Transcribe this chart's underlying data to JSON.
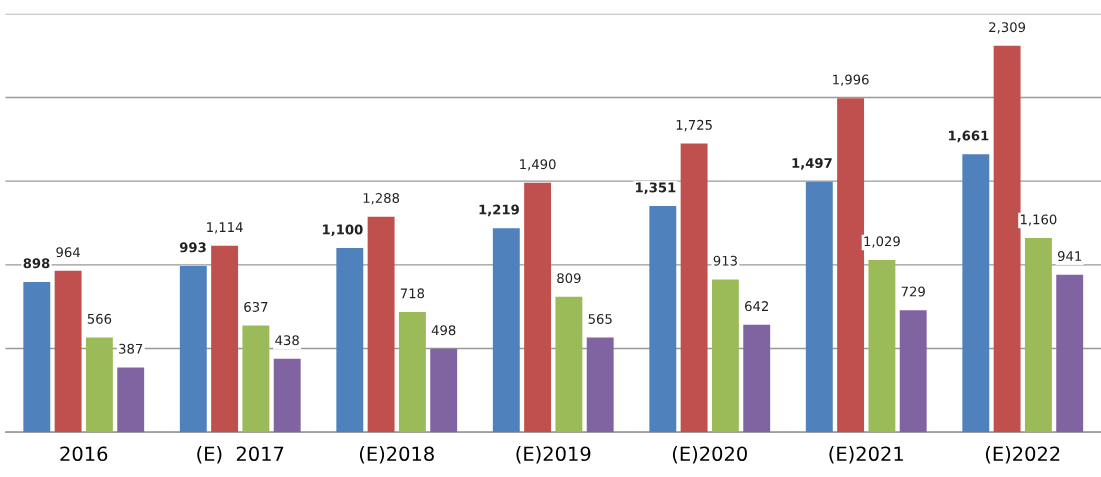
{
  "chart_data": {
    "type": "bar",
    "categories": [
      "2016",
      "(E)  2017",
      "(E)2018",
      "(E)2019",
      "(E)2020",
      "(E)2021",
      "(E)2022"
    ],
    "series": [
      {
        "color": "#4f81bd",
        "values": [
          898,
          993,
          1100,
          1219,
          1351,
          1497,
          1661
        ],
        "value_labels": [
          "898",
          "993",
          "1,100",
          "1,219",
          "1,351",
          "1,497",
          "1,661"
        ]
      },
      {
        "color": "#c0504d",
        "values": [
          964,
          1114,
          1288,
          1490,
          1725,
          1996,
          2309
        ],
        "value_labels": [
          "964",
          "1,114",
          "1,288",
          "1,490",
          "1,725",
          "1,996",
          "2,309"
        ]
      },
      {
        "color": "#9bbb59",
        "values": [
          566,
          637,
          718,
          809,
          913,
          1029,
          1160
        ],
        "value_labels": [
          "566",
          "637",
          "718",
          "809",
          "913",
          "1,029",
          "1,160"
        ]
      },
      {
        "color": "#8064a2",
        "values": [
          387,
          438,
          498,
          565,
          642,
          729,
          941
        ],
        "value_labels": [
          "387",
          "438",
          "498",
          "565",
          "642",
          "729",
          "941"
        ]
      }
    ],
    "ylim": [
      0,
      2500
    ],
    "yticks": [
      {
        "value": 0,
        "label": null
      },
      {
        "value": 500,
        "label": null
      },
      {
        "value": 1000,
        "label": null
      },
      {
        "value": 1500,
        "label": null
      },
      {
        "value": 2000,
        "label": null
      },
      {
        "value": 2500,
        "label": null
      }
    ],
    "grid": "y",
    "tick_labels": "x"
  }
}
